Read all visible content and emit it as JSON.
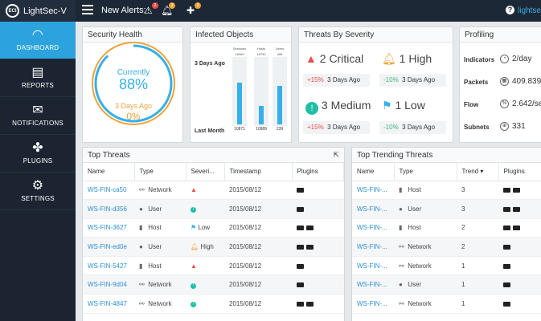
{
  "app": {
    "title": "LightSec-V",
    "logo_text": "ECI"
  },
  "topbar": {
    "alerts_label": "New Alerts:",
    "alert_counts": [
      "2",
      "3",
      "2"
    ],
    "help": "?",
    "user": "lightsec"
  },
  "sidebar": {
    "items": [
      {
        "label": "DASHBOARD",
        "icon": "gauge-icon"
      },
      {
        "label": "REPORTS",
        "icon": "document-icon"
      },
      {
        "label": "NOTIFICATIONS",
        "icon": "envelope-icon"
      },
      {
        "label": "PLUGINS",
        "icon": "puzzle-icon"
      },
      {
        "label": "SETTINGS",
        "icon": "gear-icon"
      }
    ]
  },
  "security": {
    "title": "Security Health",
    "current_label": "Currently",
    "current_value": "88%",
    "ago_label": "3 Days Ago",
    "ago_value": "0%",
    "current_pct": 88
  },
  "infected": {
    "title": "Infected Objects",
    "row_top": "3 Days Ago",
    "row_bottom": "Last Month",
    "columns": [
      {
        "name": "Sessions",
        "top": "16900",
        "bottom": "10871",
        "fill": 0.64
      },
      {
        "name": "Hosts",
        "top": "16790",
        "bottom": "10989",
        "fill": 0.28
      },
      {
        "name": "Users",
        "top": "408",
        "bottom": "239",
        "fill": 0.58
      }
    ]
  },
  "severity": {
    "title": "Threats By Severity",
    "items": [
      {
        "count": "2",
        "label": "Critical",
        "change": "+15%",
        "trend": "up",
        "ago": "3 Days Ago"
      },
      {
        "count": "1",
        "label": "High",
        "change": "-10%",
        "trend": "down",
        "ago": "3 Days Ago"
      },
      {
        "count": "3",
        "label": "Medium",
        "change": "+15%",
        "trend": "up",
        "ago": "3 Days Ago"
      },
      {
        "count": "1",
        "label": "Low",
        "change": "-10%",
        "trend": "down",
        "ago": "3 Days Ago"
      }
    ]
  },
  "profiling": {
    "title": "Profiling",
    "rows": [
      {
        "label": "Indicators",
        "value": "2/day"
      },
      {
        "label": "Packets",
        "value": "409.839/"
      },
      {
        "label": "Flow",
        "value": "2.642/se"
      },
      {
        "label": "Subnets",
        "value": "331"
      }
    ]
  },
  "top_threats": {
    "title": "Top Threats",
    "columns": [
      "Name",
      "Type",
      "Severi...",
      "Timestamp",
      "Plugins"
    ],
    "rows": [
      {
        "name": "WS-FIN-ca50",
        "type": "Network",
        "sev": "critical",
        "sev_label": "",
        "ts": "2015/08/12",
        "plugins": 1
      },
      {
        "name": "WS-FIN-d356",
        "type": "User",
        "sev": "medium",
        "sev_label": "",
        "ts": "2015/08/12",
        "plugins": 1
      },
      {
        "name": "WS-FIN-3627",
        "type": "Host",
        "sev": "low",
        "sev_label": "Low",
        "ts": "2015/08/12",
        "plugins": 2
      },
      {
        "name": "WS-FIN-ed0e",
        "type": "User",
        "sev": "high",
        "sev_label": "High",
        "ts": "2015/08/12",
        "plugins": 2
      },
      {
        "name": "WS-FIN-5427",
        "type": "Host",
        "sev": "critical",
        "sev_label": "",
        "ts": "2015/08/12",
        "plugins": 1
      },
      {
        "name": "WS-FIN-9d04",
        "type": "Network",
        "sev": "medium",
        "sev_label": "",
        "ts": "2015/08/12",
        "plugins": 1
      },
      {
        "name": "WS-FIN-4847",
        "type": "Network",
        "sev": "medium",
        "sev_label": "",
        "ts": "2015/08/12",
        "plugins": 2
      }
    ]
  },
  "trending": {
    "title": "Top Trending Threats",
    "columns": [
      "Name",
      "Type",
      "Trend",
      "Plugins"
    ],
    "rows": [
      {
        "name": "WS-FIN-...",
        "type": "Host",
        "trend": "3",
        "plugins": 2
      },
      {
        "name": "WS-FIN-...",
        "type": "User",
        "trend": "3",
        "plugins": 2
      },
      {
        "name": "WS-FIN-...",
        "type": "Host",
        "trend": "2",
        "plugins": 2
      },
      {
        "name": "WS-FIN-...",
        "type": "Network",
        "trend": "2",
        "plugins": 1
      },
      {
        "name": "WS-FIN-...",
        "type": "Network",
        "trend": "1",
        "plugins": 1
      },
      {
        "name": "WS-FIN-...",
        "type": "User",
        "trend": "1",
        "plugins": 1
      },
      {
        "name": "WS-FIN-...",
        "type": "Network",
        "trend": "1",
        "plugins": 1
      }
    ]
  },
  "colors": {
    "accent": "#2da3dd",
    "critical": "#e84c4c",
    "high": "#f0a23a",
    "medium": "#1fbfa6",
    "low": "#35b0e8"
  }
}
